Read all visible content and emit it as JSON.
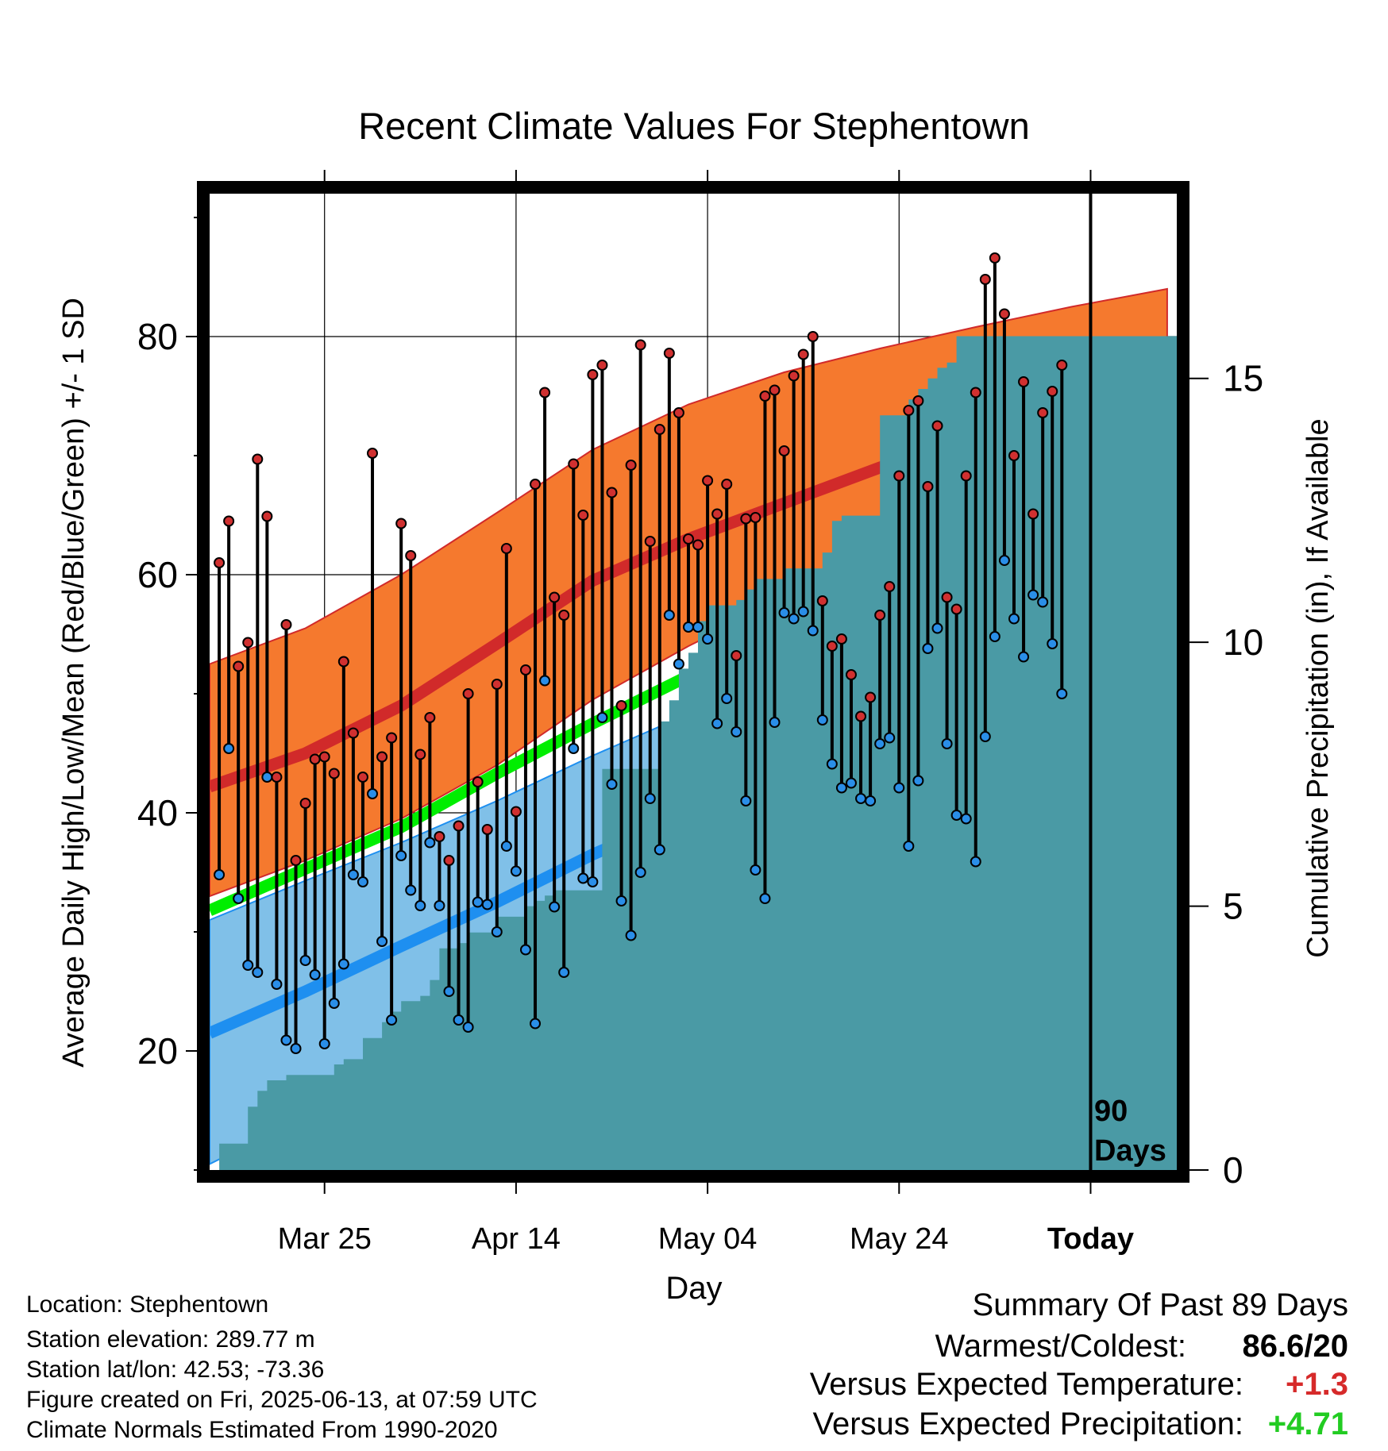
{
  "chart_data": {
    "type": "line",
    "title": "Recent Climate Values For Stephentown",
    "xlabel": "Day",
    "ylabel": "Average Daily High/Low/Mean (Red/Blue/Green) +/- 1 SD",
    "y2label": "Cumulative Precipitation (in), If Available",
    "x_tick_labels": [
      "Mar 25",
      "Apr 14",
      "May 04",
      "May 24",
      "Today"
    ],
    "x_tick_days": [
      12,
      32,
      52,
      72,
      92
    ],
    "xlim": [
      0,
      101
    ],
    "ylim": [
      10,
      92
    ],
    "y_ticks": [
      20,
      40,
      60,
      80
    ],
    "y2lim": [
      0,
      18.5
    ],
    "y2_ticks": [
      0,
      5,
      10,
      15
    ],
    "grid": true,
    "today_marker": {
      "day": 92,
      "label_line1": "90",
      "label_line2": "Days"
    },
    "colors": {
      "high_band": "#f5792e",
      "high_mean": "#d12a2a",
      "low_band": "#80c0e8",
      "low_mean": "#1e8ff0",
      "mean": "#00ee00",
      "precip": "#4a9aa5",
      "high_point": "#d03030",
      "low_point": "#2a8ee8"
    },
    "normals": {
      "days": [
        0,
        10,
        20,
        30,
        40,
        50,
        60,
        70,
        80,
        90,
        100
      ],
      "high_mean": [
        42.2,
        45.0,
        49.0,
        54.2,
        59.5,
        63.0,
        66.0,
        69.0,
        71.5,
        74.0,
        77.0
      ],
      "high_plus_sd": [
        52.5,
        55.5,
        60.0,
        65.2,
        70.5,
        74.3,
        77.0,
        79.0,
        80.8,
        82.5,
        84.0
      ],
      "high_minus_sd": [
        33.0,
        36.0,
        39.5,
        44.0,
        49.5,
        54.0,
        58.0,
        61.5,
        64.5,
        67.3,
        70.3
      ],
      "mean": [
        31.8,
        35.3,
        38.8,
        43.3,
        47.5,
        51.5,
        54.5,
        57.3,
        60.0,
        62.8,
        66.5
      ],
      "low_mean": [
        21.5,
        25.0,
        28.8,
        32.5,
        36.5,
        40.0,
        43.3,
        46.3,
        49.0,
        52.0,
        55.8
      ],
      "low_plus_sd": [
        31.0,
        34.3,
        37.5,
        41.0,
        44.8,
        48.3,
        51.5,
        54.5,
        57.0,
        59.6,
        62.2
      ],
      "low_minus_sd": [
        10.5,
        14.5,
        19.0,
        24.0,
        28.5,
        32.5,
        36.0,
        39.3,
        42.5,
        45.5,
        50.0
      ]
    },
    "series": [
      {
        "name": "High",
        "values": [
          61.0,
          64.5,
          52.3,
          54.3,
          69.7,
          64.9,
          43.0,
          55.8,
          36.0,
          40.8,
          44.5,
          44.7,
          43.3,
          52.7,
          46.7,
          43.0,
          70.2,
          44.7,
          46.3,
          64.3,
          61.6,
          44.9,
          48.0,
          38.0,
          36.0,
          38.9,
          50.0,
          42.6,
          38.6,
          50.8,
          62.2,
          40.1,
          52.0,
          67.6,
          75.3,
          58.1,
          56.6,
          69.3,
          65.0,
          76.8,
          77.6,
          66.9,
          49.0,
          69.2,
          79.3,
          62.8,
          72.2,
          78.6,
          73.6,
          63.0,
          62.5,
          67.9,
          65.1,
          67.6,
          53.2,
          64.7,
          64.8,
          75.0,
          75.5,
          70.4,
          76.7,
          78.5,
          80.0,
          57.8,
          54.0,
          54.6,
          51.6,
          48.1,
          49.7,
          56.6,
          59.0,
          68.3,
          73.8,
          74.6,
          67.4,
          72.5,
          58.1,
          57.1,
          68.3,
          75.3,
          84.8,
          86.6,
          81.9,
          70.0,
          76.2,
          65.1,
          73.6,
          75.4,
          77.6
        ]
      },
      {
        "name": "Low",
        "values": [
          34.8,
          45.4,
          32.8,
          27.2,
          26.6,
          43.0,
          25.6,
          20.9,
          20.2,
          27.6,
          26.4,
          20.6,
          24.0,
          27.3,
          34.8,
          34.2,
          41.6,
          29.2,
          22.6,
          36.4,
          33.5,
          32.2,
          37.5,
          32.2,
          25.0,
          22.6,
          22.0,
          32.5,
          32.3,
          30.0,
          37.2,
          35.1,
          28.5,
          22.3,
          51.1,
          32.1,
          26.6,
          45.4,
          34.5,
          34.2,
          48.0,
          42.4,
          32.6,
          29.7,
          35.0,
          41.2,
          36.9,
          56.6,
          52.5,
          55.6,
          55.6,
          54.6,
          47.5,
          49.6,
          46.8,
          41.0,
          35.2,
          32.8,
          47.6,
          56.8,
          56.3,
          56.9,
          55.3,
          47.8,
          44.1,
          42.1,
          42.5,
          41.2,
          41.0,
          45.8,
          46.3,
          42.1,
          37.2,
          42.7,
          53.8,
          55.5,
          45.8,
          39.8,
          39.5,
          35.9,
          46.4,
          54.8,
          61.2,
          56.3,
          53.1,
          58.3,
          57.7,
          54.2,
          50.0
        ]
      },
      {
        "name": "Cumulative Precipitation",
        "values": [
          0.0,
          0.5,
          0.5,
          0.5,
          1.2,
          1.5,
          1.7,
          1.7,
          1.8,
          1.8,
          1.8,
          1.8,
          1.8,
          2.0,
          2.1,
          2.1,
          2.5,
          2.5,
          2.8,
          3.0,
          3.2,
          3.2,
          3.3,
          3.6,
          4.2,
          4.2,
          4.3,
          4.5,
          4.5,
          4.5,
          4.8,
          4.8,
          4.8,
          5.0,
          5.1,
          5.2,
          5.3,
          5.3,
          5.3,
          5.3,
          5.3,
          7.6,
          7.6,
          7.6,
          7.6,
          7.6,
          7.6,
          8.5,
          8.9,
          9.5,
          9.8,
          10.4,
          10.7,
          10.7,
          10.7,
          10.8,
          11.0,
          11.2,
          11.2,
          11.2,
          11.4,
          11.4,
          11.4,
          11.4,
          11.7,
          12.3,
          12.4,
          12.4,
          12.4,
          12.4,
          14.3,
          14.3,
          14.3,
          14.6,
          14.8,
          15.0,
          15.2,
          15.3,
          15.8,
          15.8,
          15.8,
          15.8,
          15.8,
          15.8,
          15.8,
          15.8,
          15.8,
          15.8,
          15.8,
          15.8
        ]
      }
    ]
  },
  "info": {
    "location": "Location: Stephentown",
    "elevation": "Station elevation: 289.77 m",
    "latlon": "Station lat/lon: 42.53; -73.36",
    "created": "Figure created on Fri, 2025-06-13, at 07:59 UTC",
    "normals": "Climate Normals Estimated From 1990-2020"
  },
  "summary": {
    "title": "Summary Of Past 89 Days",
    "warm_cold_label": "Warmest/Coldest:",
    "warm_cold_value": "86.6/20",
    "temp_label": "Versus Expected Temperature:",
    "temp_value": "+1.3",
    "temp_color": "#d62a2a",
    "precip_label": "Versus Expected Precipitation:",
    "precip_value": "+4.71",
    "precip_color": "#22cc22"
  }
}
